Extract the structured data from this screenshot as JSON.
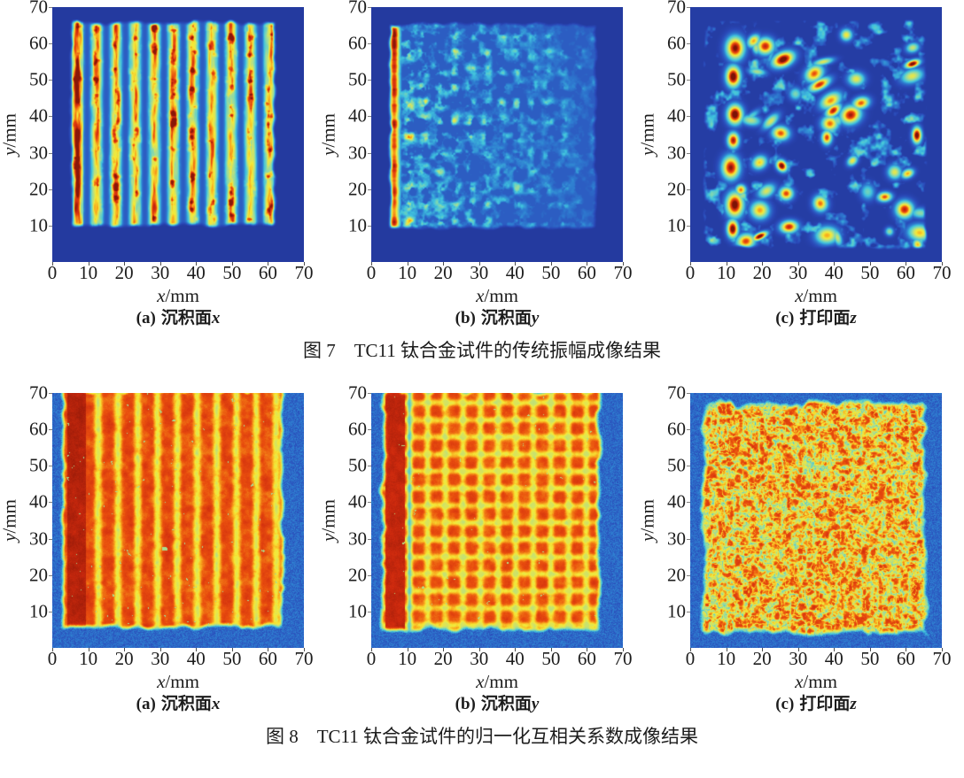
{
  "page": {
    "background": "#ffffff",
    "text_color": "#1c1c1c"
  },
  "figures": [
    {
      "id": "fig7",
      "title": "图 7　TC11 钛合金试件的传统振幅成像结果",
      "subplot_indices": [
        0,
        1,
        2
      ]
    },
    {
      "id": "fig8",
      "title": "图 8　TC11 钛合金试件的归一化互相关系数成像结果",
      "subplot_indices": [
        3,
        4,
        5
      ]
    }
  ],
  "chart_data": [
    {
      "figure": "图 7",
      "type": "heatmap",
      "caption_prefix": "(a)",
      "caption_text": "沉积面",
      "caption_var": "x",
      "xlabel_var": "x",
      "xlabel_unit": "/mm",
      "ylabel_var": "y",
      "ylabel_unit": "/mm",
      "x_range": [
        0,
        70
      ],
      "y_range": [
        0,
        70
      ],
      "xticks": [
        "0",
        "10",
        "20",
        "30",
        "40",
        "50",
        "60",
        "70"
      ],
      "yticks": [
        "70",
        "60",
        "50",
        "40",
        "30",
        "20",
        "10"
      ],
      "colormap": "jet",
      "value_range": [
        0,
        1
      ],
      "description": "Amplitude image of deposition face x: vertical raster stripes (green-yellow with red hot spots, period ~5.3 mm) over specimen region x 5-62 mm, y 10-66 mm; leftmost stripe at x~7 mm strongly red; dark blue background.",
      "pattern": {
        "kind": "amp-stripes",
        "seed": 11,
        "period": 5.35,
        "stripe_origin": 7.0,
        "region": [
          4.6,
          62.4,
          9.4,
          66.4
        ],
        "hot_column_x": 7.0
      }
    },
    {
      "figure": "图 7",
      "type": "heatmap",
      "caption_prefix": "(b)",
      "caption_text": "沉积面",
      "caption_var": "y",
      "xlabel_var": "x",
      "xlabel_unit": "/mm",
      "ylabel_var": "y",
      "ylabel_unit": "/mm",
      "x_range": [
        0,
        70
      ],
      "y_range": [
        0,
        70
      ],
      "xticks": [
        "0",
        "10",
        "20",
        "30",
        "40",
        "50",
        "60",
        "70"
      ],
      "yticks": [
        "70",
        "60",
        "50",
        "40",
        "30",
        "20",
        "10"
      ],
      "colormap": "jet",
      "value_range": [
        0,
        1
      ],
      "description": "Amplitude image of deposition face y: single intense red-yellow vertical stripe at x~6 mm spanning y 9-65 mm; faint cyan/pale-green blob grid fading toward larger x; dark blue background.",
      "pattern": {
        "kind": "amp-edge-stripe",
        "seed": 22,
        "stripe_x": 6.4,
        "region": [
          4.6,
          63.0,
          8.8,
          65.8
        ],
        "cell_period": [
          4.3,
          4.6
        ]
      }
    },
    {
      "figure": "图 7",
      "type": "heatmap",
      "caption_prefix": "(c)",
      "caption_text": "打印面",
      "caption_var": "z",
      "xlabel_var": "x",
      "xlabel_unit": "/mm",
      "ylabel_var": "y",
      "ylabel_unit": "/mm",
      "x_range": [
        0,
        70
      ],
      "y_range": [
        0,
        70
      ],
      "xticks": [
        "0",
        "10",
        "20",
        "30",
        "40",
        "50",
        "60",
        "70"
      ],
      "yticks": [
        "70",
        "60",
        "50",
        "40",
        "30",
        "20",
        "10"
      ],
      "colormap": "jet",
      "value_range": [
        0,
        1
      ],
      "description": "Amplitude image of printing face z: scattered elongated blobs with dark-red cores and yellow/green/cyan halos arranged in diagonal chains; strong blob column near x 10-13 mm; dark blue background.",
      "pattern": {
        "kind": "amp-blobs",
        "seed": 33,
        "region": [
          3.5,
          66.0,
          3.5,
          66.5
        ],
        "column_x": 11.5
      }
    },
    {
      "figure": "图 8",
      "type": "heatmap",
      "caption_prefix": "(a)",
      "caption_text": "沉积面",
      "caption_var": "x",
      "xlabel_var": "x",
      "xlabel_unit": "/mm",
      "ylabel_var": "y",
      "ylabel_unit": "/mm",
      "x_range": [
        0,
        70
      ],
      "y_range": [
        0,
        70
      ],
      "xticks": [
        "0",
        "10",
        "20",
        "30",
        "40",
        "50",
        "60",
        "70"
      ],
      "yticks": [
        "70",
        "60",
        "50",
        "40",
        "30",
        "20",
        "10"
      ],
      "colormap": "jet",
      "value_range": [
        0,
        1
      ],
      "description": "Correlation-coefficient image of deposition face x: near-saturated orange-red square (x 2-65, y 5-70 mm) with vertical yellow seam striping, darker red band at x 5-9 mm, yellow-green rim; speckled medium-blue noise background.",
      "pattern": {
        "kind": "corr-stripes",
        "seed": 44,
        "period": 5.5,
        "region": [
          2.2,
          64.6,
          4.8,
          71.5
        ],
        "dark_band": [
          4.2,
          9.3
        ]
      }
    },
    {
      "figure": "图 8",
      "type": "heatmap",
      "caption_prefix": "(b)",
      "caption_text": "沉积面",
      "caption_var": "y",
      "xlabel_var": "x",
      "xlabel_unit": "/mm",
      "ylabel_var": "y",
      "ylabel_unit": "/mm",
      "x_range": [
        0,
        70
      ],
      "y_range": [
        0,
        70
      ],
      "xticks": [
        "0",
        "10",
        "20",
        "30",
        "40",
        "50",
        "60",
        "70"
      ],
      "yticks": [
        "70",
        "60",
        "50",
        "40",
        "30",
        "20",
        "10"
      ],
      "colormap": "jet",
      "value_range": [
        0,
        1
      ],
      "description": "Correlation-coefficient image of deposition face y: orange-red square with cross-hatched yellow seams (vertical and horizontal), thin bright line at x~10.6 mm, darker band x 4-9 mm, cyan-green rim; speckled blue background.",
      "pattern": {
        "kind": "corr-grid",
        "seed": 55,
        "period_x": 4.9,
        "period_y": 4.7,
        "region": [
          2.4,
          64.2,
          4.4,
          71.5
        ],
        "dark_band": [
          3.9,
          9.4
        ],
        "line_x": 10.6
      }
    },
    {
      "figure": "图 8",
      "type": "heatmap",
      "caption_prefix": "(c)",
      "caption_text": "打印面",
      "caption_var": "z",
      "xlabel_var": "x",
      "xlabel_unit": "/mm",
      "ylabel_var": "y",
      "ylabel_unit": "/mm",
      "x_range": [
        0,
        70
      ],
      "y_range": [
        0,
        70
      ],
      "xticks": [
        "0",
        "10",
        "20",
        "30",
        "40",
        "50",
        "60",
        "70"
      ],
      "yticks": [
        "70",
        "60",
        "50",
        "40",
        "30",
        "20",
        "10"
      ],
      "colormap": "jet",
      "value_range": [
        0,
        1
      ],
      "description": "Correlation-coefficient image of printing face z: orange-red square (x 3-66, y 4-67 mm) broken into cell-like patches by yellow-green crack seams; ragged cyan-green rim; speckled blue background.",
      "pattern": {
        "kind": "corr-cells",
        "seed": 66,
        "cell_scale": 0.45,
        "region": [
          3.2,
          66.0,
          3.6,
          67.6
        ]
      }
    }
  ]
}
